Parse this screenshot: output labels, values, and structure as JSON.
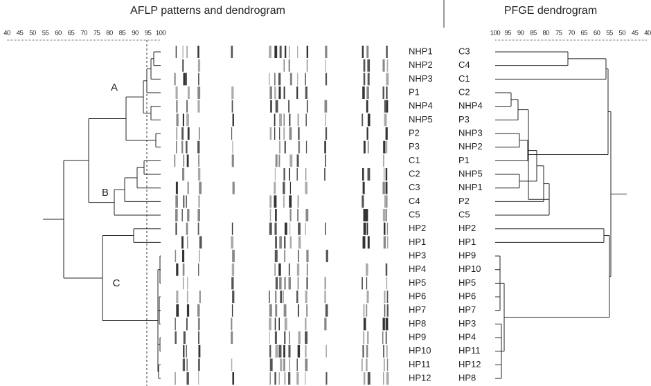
{
  "titles": {
    "aflp": "AFLP patterns and dendrogram",
    "pfge": "PFGE dendrogram"
  },
  "aflp": {
    "scale": [
      40,
      45,
      50,
      55,
      60,
      65,
      70,
      75,
      80,
      85,
      90,
      95,
      100
    ],
    "cluster_labels": [
      "A",
      "B",
      "C"
    ],
    "strains": [
      "NHP1",
      "NHP2",
      "NHP3",
      "P1",
      "NHP4",
      "NHP5",
      "P2",
      "P3",
      "C1",
      "C2",
      "C3",
      "C4",
      "C5",
      "HP2",
      "HP1",
      "HP3",
      "HP4",
      "HP5",
      "HP6",
      "HP7",
      "HP8",
      "HP9",
      "HP10",
      "HP11",
      "HP12"
    ]
  },
  "pfge": {
    "scale": [
      100,
      95,
      90,
      85,
      80,
      75,
      70,
      65,
      60,
      55,
      50,
      45,
      40
    ],
    "strains": [
      "C3",
      "C4",
      "C1",
      "C2",
      "NHP4",
      "P3",
      "NHP3",
      "NHP2",
      "P1",
      "NHP5",
      "NHP1",
      "P2",
      "C5",
      "HP2",
      "HP1",
      "HP9",
      "HP10",
      "HP5",
      "HP6",
      "HP7",
      "HP3",
      "HP4",
      "HP11",
      "HP12",
      "HP8"
    ]
  }
}
